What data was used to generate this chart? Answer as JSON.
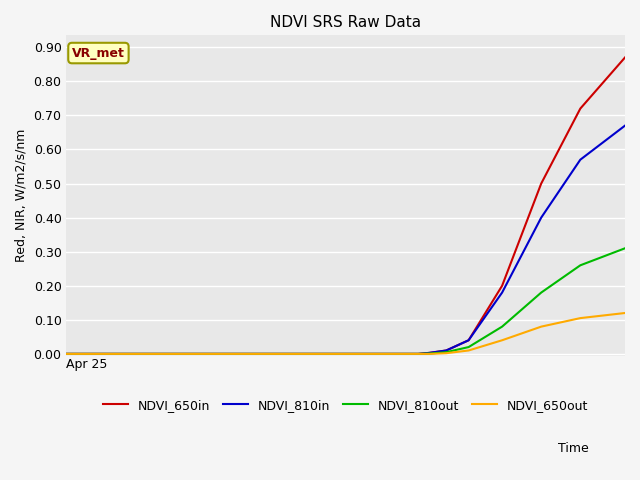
{
  "title": "NDVI SRS Raw Data",
  "xlabel": "Time",
  "ylabel": "Red, NIR, W/m2/s/nm",
  "ylim": [
    -0.005,
    0.935
  ],
  "xlim": [
    0,
    100
  ],
  "fig_bg_color": "#f5f5f5",
  "plot_bg_color": "#e8e8e8",
  "grid_color": "#ffffff",
  "annotation_label": "VR_met",
  "annotation_box_color": "#ffffc0",
  "annotation_border_color": "#999900",
  "annotation_text_color": "#880000",
  "x_tick_label": "Apr 25",
  "x_tick_pos": 0,
  "yticks": [
    0.0,
    0.1,
    0.2,
    0.3,
    0.4,
    0.5,
    0.6,
    0.7,
    0.8,
    0.9
  ],
  "series": [
    {
      "label": "NDVI_650in",
      "color": "#cc0000",
      "x": [
        0,
        63,
        65,
        68,
        72,
        78,
        85,
        92,
        100
      ],
      "y": [
        0.0,
        0.0,
        0.003,
        0.01,
        0.04,
        0.2,
        0.5,
        0.72,
        0.87
      ]
    },
    {
      "label": "NDVI_810in",
      "color": "#0000cc",
      "x": [
        0,
        63,
        65,
        68,
        72,
        78,
        85,
        92,
        100
      ],
      "y": [
        0.0,
        0.0,
        0.003,
        0.01,
        0.04,
        0.18,
        0.4,
        0.57,
        0.67
      ]
    },
    {
      "label": "NDVI_810out",
      "color": "#00bb00",
      "x": [
        0,
        63,
        65,
        68,
        72,
        78,
        85,
        92,
        100
      ],
      "y": [
        0.0,
        0.0,
        0.001,
        0.005,
        0.02,
        0.08,
        0.18,
        0.26,
        0.31
      ]
    },
    {
      "label": "NDVI_650out",
      "color": "#ffaa00",
      "x": [
        0,
        63,
        65,
        68,
        72,
        78,
        85,
        92,
        100
      ],
      "y": [
        0.0,
        0.0,
        0.0,
        0.002,
        0.01,
        0.04,
        0.08,
        0.105,
        0.12
      ]
    }
  ]
}
